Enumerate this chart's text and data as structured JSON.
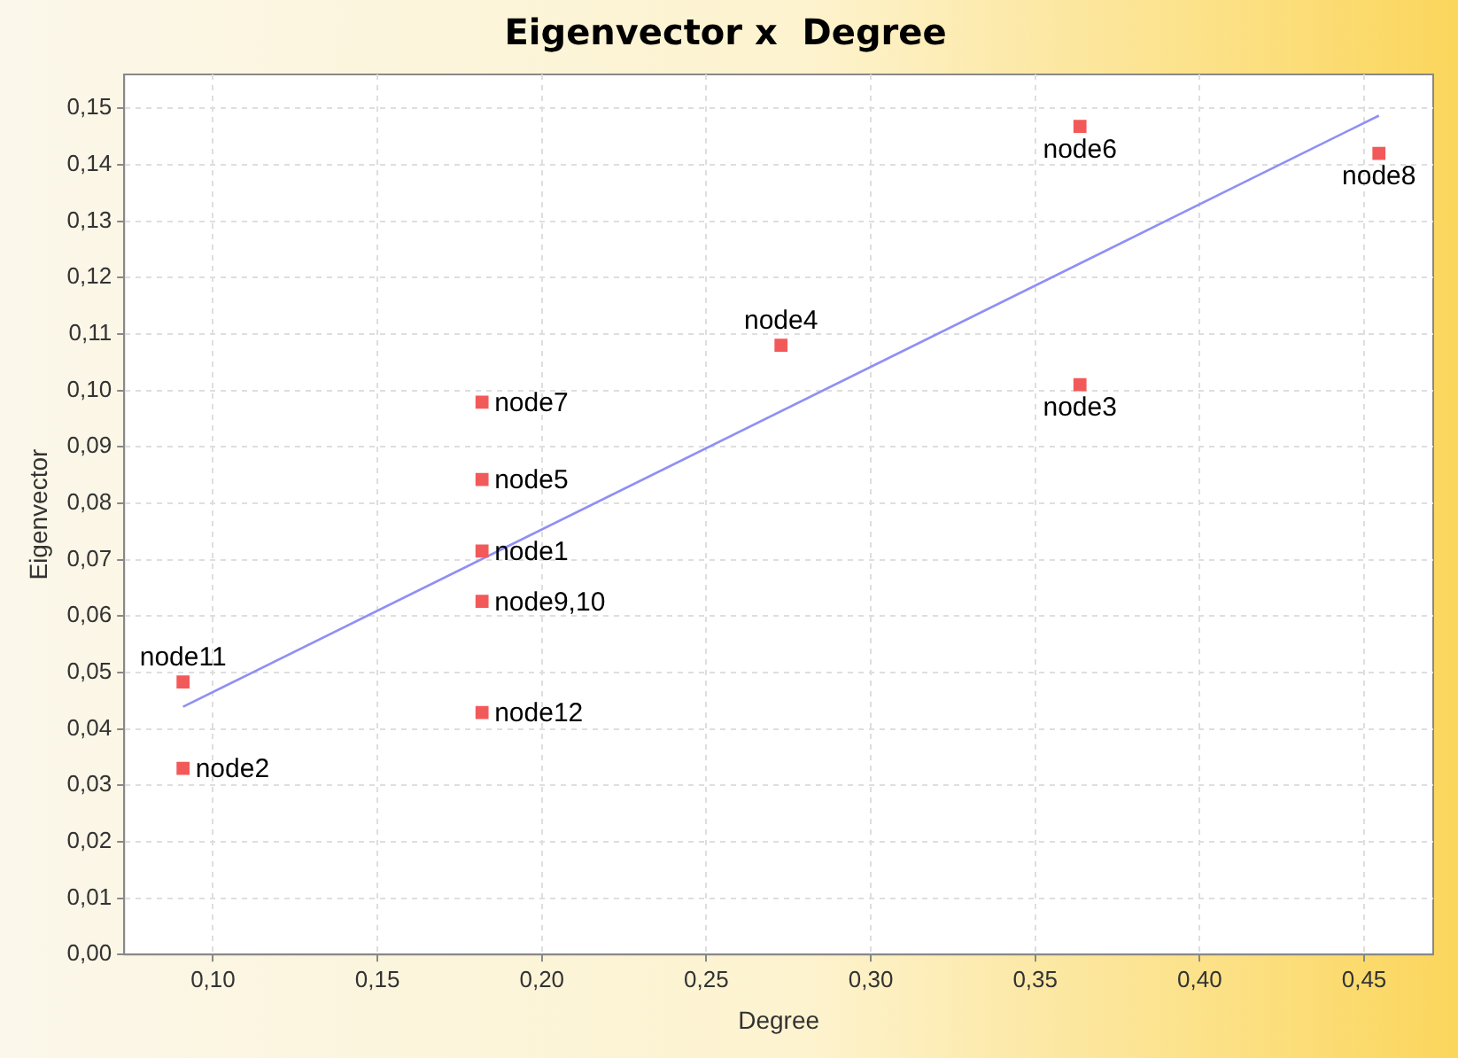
{
  "chart_data": {
    "type": "scatter",
    "title": "Eigenvector x  Degree",
    "xlabel": "Degree",
    "ylabel": "Eigenvector",
    "xlim": [
      0.073,
      0.471
    ],
    "ylim": [
      0,
      0.156
    ],
    "xticks": [
      {
        "value": 0.1,
        "label": "0,10"
      },
      {
        "value": 0.15,
        "label": "0,15"
      },
      {
        "value": 0.2,
        "label": "0,20"
      },
      {
        "value": 0.25,
        "label": "0,25"
      },
      {
        "value": 0.3,
        "label": "0,30"
      },
      {
        "value": 0.35,
        "label": "0,35"
      },
      {
        "value": 0.4,
        "label": "0,40"
      },
      {
        "value": 0.45,
        "label": "0,45"
      }
    ],
    "yticks": [
      {
        "value": 0,
        "label": "0,00"
      },
      {
        "value": 0.01,
        "label": "0,01"
      },
      {
        "value": 0.02,
        "label": "0,02"
      },
      {
        "value": 0.03,
        "label": "0,03"
      },
      {
        "value": 0.04,
        "label": "0,04"
      },
      {
        "value": 0.05,
        "label": "0,05"
      },
      {
        "value": 0.06,
        "label": "0,06"
      },
      {
        "value": 0.07,
        "label": "0,07"
      },
      {
        "value": 0.08,
        "label": "0,08"
      },
      {
        "value": 0.09,
        "label": "0,09"
      },
      {
        "value": 0.1,
        "label": "0,10"
      },
      {
        "value": 0.11,
        "label": "0,11"
      },
      {
        "value": 0.12,
        "label": "0,12"
      },
      {
        "value": 0.13,
        "label": "0,13"
      },
      {
        "value": 0.14,
        "label": "0,14"
      },
      {
        "value": 0.15,
        "label": "0,15"
      }
    ],
    "grid": true,
    "legend": false,
    "marker": "square",
    "series": [
      {
        "type": "scatter",
        "color": "#f25a5a",
        "x": [
          0.0909,
          0.0909,
          0.1818,
          0.1818,
          0.1818,
          0.1818,
          0.1818,
          0.2727,
          0.3636,
          0.3636,
          0.4545
        ],
        "values": [
          0.0483,
          0.033,
          0.0979,
          0.0842,
          0.0715,
          0.0626,
          0.0429,
          0.108,
          0.1468,
          0.101,
          0.142
        ],
        "value_labels": [
          "node11",
          "node2",
          "node7",
          "node5",
          "node1",
          "node9,10",
          "node12",
          "node4",
          "node6",
          "node3",
          "node8"
        ]
      },
      {
        "type": "line",
        "color": "#8f8ff5",
        "marker": "none",
        "x": [
          0.0909,
          0.4545
        ],
        "values": [
          0.0439,
          0.1487
        ]
      }
    ]
  }
}
